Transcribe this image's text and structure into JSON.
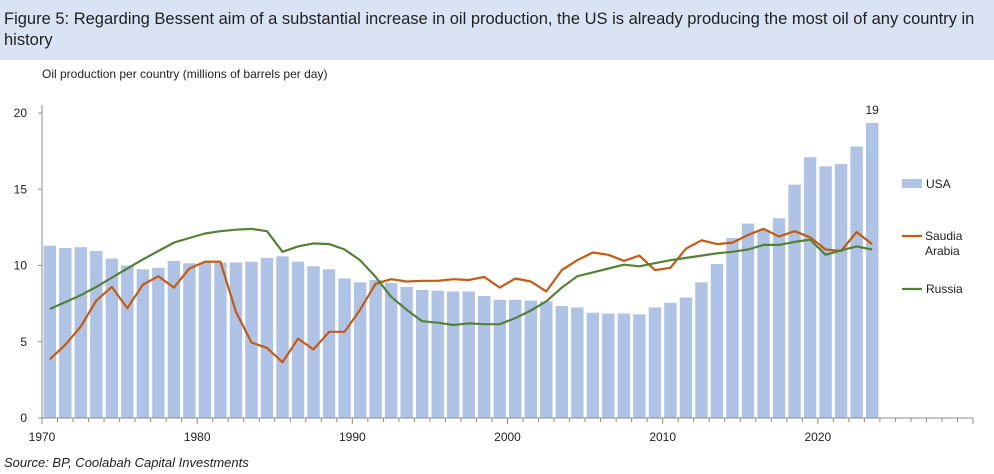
{
  "title": "Figure 5: Regarding Bessent aim of a substantial increase in oil production, the US is already producing the most oil of any country in history",
  "source": "Source: BP, Coolabah Capital Investments",
  "colors": {
    "title_band": "#dae3f3",
    "usa": "#aec3e6",
    "saudi": "#c55a11",
    "russia": "#548235"
  },
  "chart_data": {
    "type": "bar+line",
    "ylabel": "Oil production per country (millions of barrels per day)",
    "ylim": [
      0,
      20
    ],
    "yticks": [
      "0",
      "5",
      "10",
      "15",
      "20"
    ],
    "xlim": [
      1970,
      2030
    ],
    "xtick_labels": [
      "1970",
      "1980",
      "1990",
      "2000",
      "2010",
      "2020"
    ],
    "years": [
      1970,
      1971,
      1972,
      1973,
      1974,
      1975,
      1976,
      1977,
      1978,
      1979,
      1980,
      1981,
      1982,
      1983,
      1984,
      1985,
      1986,
      1987,
      1988,
      1989,
      1990,
      1991,
      1992,
      1993,
      1994,
      1995,
      1996,
      1997,
      1998,
      1999,
      2000,
      2001,
      2002,
      2003,
      2004,
      2005,
      2006,
      2007,
      2008,
      2009,
      2010,
      2011,
      2012,
      2013,
      2014,
      2015,
      2016,
      2017,
      2018,
      2019,
      2020,
      2021,
      2022,
      2023
    ],
    "series": [
      {
        "name": "USA",
        "kind": "bar",
        "values": [
          11.3,
          11.15,
          11.2,
          10.95,
          10.45,
          10.0,
          9.75,
          9.85,
          10.3,
          10.15,
          10.2,
          10.2,
          10.2,
          10.25,
          10.5,
          10.6,
          10.25,
          9.95,
          9.75,
          9.15,
          8.9,
          9.05,
          8.85,
          8.6,
          8.4,
          8.35,
          8.3,
          8.3,
          8.0,
          7.75,
          7.75,
          7.7,
          7.65,
          7.35,
          7.25,
          6.9,
          6.85,
          6.85,
          6.8,
          7.25,
          7.55,
          7.9,
          8.9,
          10.1,
          11.8,
          12.75,
          12.35,
          13.1,
          15.3,
          17.1,
          16.5,
          16.65,
          17.8,
          19.35
        ]
      },
      {
        "name": "Saudia Arabia",
        "kind": "line",
        "values": [
          3.85,
          4.8,
          6.0,
          7.7,
          8.6,
          7.2,
          8.75,
          9.3,
          8.55,
          9.8,
          10.25,
          10.25,
          6.95,
          4.95,
          4.6,
          3.65,
          5.2,
          4.5,
          5.65,
          5.65,
          7.1,
          8.8,
          9.1,
          8.95,
          9.0,
          9.0,
          9.1,
          9.05,
          9.25,
          8.55,
          9.15,
          8.95,
          8.3,
          9.7,
          10.35,
          10.85,
          10.7,
          10.3,
          10.65,
          9.7,
          9.85,
          11.1,
          11.65,
          11.4,
          11.5,
          12.0,
          12.4,
          11.9,
          12.25,
          11.85,
          11.05,
          10.95,
          12.2,
          11.4
        ]
      },
      {
        "name": "Russia",
        "kind": "line",
        "values": [
          7.15,
          7.6,
          8.05,
          8.6,
          9.2,
          9.8,
          10.4,
          10.95,
          11.5,
          11.8,
          12.1,
          12.25,
          12.35,
          12.4,
          12.25,
          10.9,
          11.25,
          11.45,
          11.4,
          11.05,
          10.35,
          9.25,
          7.95,
          7.1,
          6.35,
          6.25,
          6.1,
          6.2,
          6.15,
          6.15,
          6.55,
          7.05,
          7.65,
          8.55,
          9.3,
          9.55,
          9.8,
          10.05,
          9.95,
          10.15,
          10.35,
          10.5,
          10.65,
          10.8,
          10.9,
          11.05,
          11.35,
          11.35,
          11.55,
          11.7,
          10.7,
          11.0,
          11.25,
          11.05
        ]
      }
    ],
    "legend": [
      "USA",
      "Saudia Arabia",
      "Russia"
    ],
    "legend_position": "right",
    "annotations": [
      {
        "year": 2023,
        "text": "19"
      }
    ]
  }
}
